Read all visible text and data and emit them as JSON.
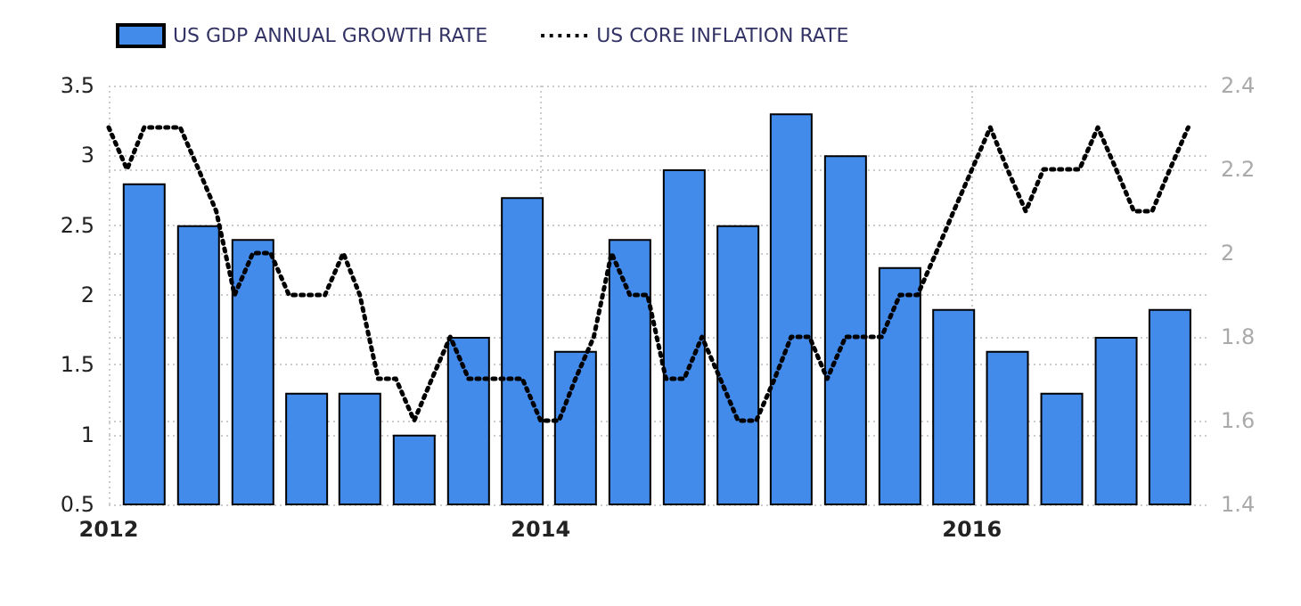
{
  "chart_data": {
    "type": "bar",
    "grid": true,
    "legend": "top left",
    "marker": "none",
    "xlim": [
      "2012-01",
      "2017-02"
    ],
    "xticks": [
      "2012",
      "2014",
      "2016"
    ],
    "ylim": [
      0.5,
      3.5
    ],
    "yticks": [
      0.5,
      1,
      1.5,
      2,
      2.5,
      3,
      3.5
    ],
    "y2lim": [
      1.4,
      2.4
    ],
    "y2ticks": [
      1.4,
      1.6,
      1.8,
      2,
      2.2,
      2.4
    ],
    "series": [
      {
        "name": "US GDP ANNUAL GROWTH RATE",
        "color": "#428bea",
        "x": [
          "2012-03",
          "2012-06",
          "2012-09",
          "2012-12",
          "2013-03",
          "2013-06",
          "2013-09",
          "2013-12",
          "2014-03",
          "2014-06",
          "2014-09",
          "2014-12",
          "2015-03",
          "2015-06",
          "2015-09",
          "2015-12",
          "2016-03",
          "2016-06",
          "2016-09",
          "2016-12"
        ],
        "values": [
          2.8,
          2.5,
          2.4,
          1.3,
          1.3,
          1.0,
          1.7,
          2.7,
          1.6,
          2.4,
          2.9,
          2.5,
          3.3,
          3.0,
          2.2,
          1.9,
          1.6,
          1.3,
          1.7,
          1.9
        ]
      },
      {
        "name": "US CORE INFLATION RATE",
        "type": "line",
        "axis": "y2",
        "line_style": "dotted",
        "color": "#000000",
        "x": [
          "2012-01",
          "2012-02",
          "2012-03",
          "2012-04",
          "2012-05",
          "2012-06",
          "2012-07",
          "2012-08",
          "2012-09",
          "2012-10",
          "2012-11",
          "2012-12",
          "2013-01",
          "2013-02",
          "2013-03",
          "2013-04",
          "2013-05",
          "2013-06",
          "2013-07",
          "2013-08",
          "2013-09",
          "2013-10",
          "2013-11",
          "2013-12",
          "2014-01",
          "2014-02",
          "2014-03",
          "2014-04",
          "2014-05",
          "2014-06",
          "2014-07",
          "2014-08",
          "2014-09",
          "2014-10",
          "2014-11",
          "2014-12",
          "2015-01",
          "2015-02",
          "2015-03",
          "2015-04",
          "2015-05",
          "2015-06",
          "2015-07",
          "2015-08",
          "2015-09",
          "2015-10",
          "2015-11",
          "2015-12",
          "2016-01",
          "2016-02",
          "2016-03",
          "2016-04",
          "2016-05",
          "2016-06",
          "2016-07",
          "2016-08",
          "2016-09",
          "2016-10",
          "2016-11",
          "2016-12",
          "2017-01"
        ],
        "values": [
          2.3,
          2.2,
          2.3,
          2.3,
          2.3,
          2.2,
          2.1,
          1.9,
          2.0,
          2.0,
          1.9,
          1.9,
          1.9,
          2.0,
          1.9,
          1.7,
          1.7,
          1.6,
          1.7,
          1.8,
          1.7,
          1.7,
          1.7,
          1.7,
          1.6,
          1.6,
          1.7,
          1.8,
          2.0,
          1.9,
          1.9,
          1.7,
          1.7,
          1.8,
          1.7,
          1.6,
          1.6,
          1.7,
          1.8,
          1.8,
          1.7,
          1.8,
          1.8,
          1.8,
          1.9,
          1.9,
          2.0,
          2.1,
          2.2,
          2.3,
          2.2,
          2.1,
          2.2,
          2.2,
          2.2,
          2.3,
          2.2,
          2.1,
          2.1,
          2.2,
          2.3
        ]
      }
    ]
  }
}
